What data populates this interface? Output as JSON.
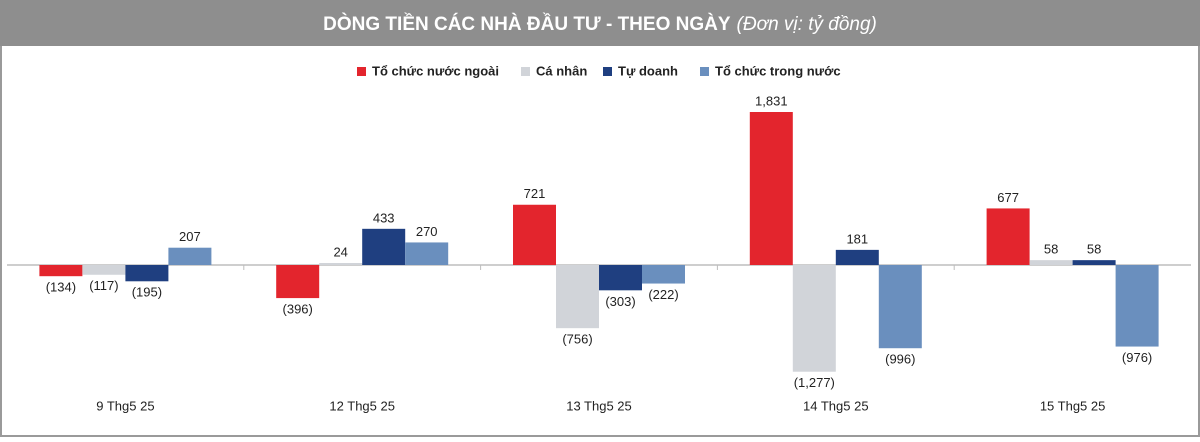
{
  "chart_data": {
    "type": "bar",
    "title": "DÒNG TIỀN CÁC NHÀ ĐẦU TƯ - THEO NGÀY",
    "subtitle": "(Đơn vị: tỷ đồng)",
    "categories": [
      "9 Thg5 25",
      "12 Thg5 25",
      "13 Thg5 25",
      "14 Thg5 25",
      "15 Thg5 25"
    ],
    "series": [
      {
        "name": "Tổ chức nước ngoài",
        "color": "#e3252d",
        "values": [
          -134,
          -396,
          721,
          1831,
          677
        ],
        "value_labels": [
          "(134)",
          "(396)",
          "721",
          "1,831",
          "677"
        ]
      },
      {
        "name": "Cá nhân",
        "color": "#d1d4d9",
        "values": [
          -117,
          24,
          -756,
          -1277,
          58
        ],
        "value_labels": [
          "(117)",
          "24",
          "(756)",
          "(1,277)",
          "58"
        ]
      },
      {
        "name": "Tự doanh",
        "color": "#1f3f80",
        "values": [
          -195,
          433,
          -303,
          181,
          58
        ],
        "value_labels": [
          "(195)",
          "433",
          "(303)",
          "181",
          "58"
        ]
      },
      {
        "name": "Tổ chức trong nước",
        "color": "#6a8fbe",
        "values": [
          207,
          270,
          -222,
          -996,
          -976
        ],
        "value_labels": [
          "207",
          "270",
          "(222)",
          "(996)",
          "(976)"
        ]
      }
    ]
  }
}
